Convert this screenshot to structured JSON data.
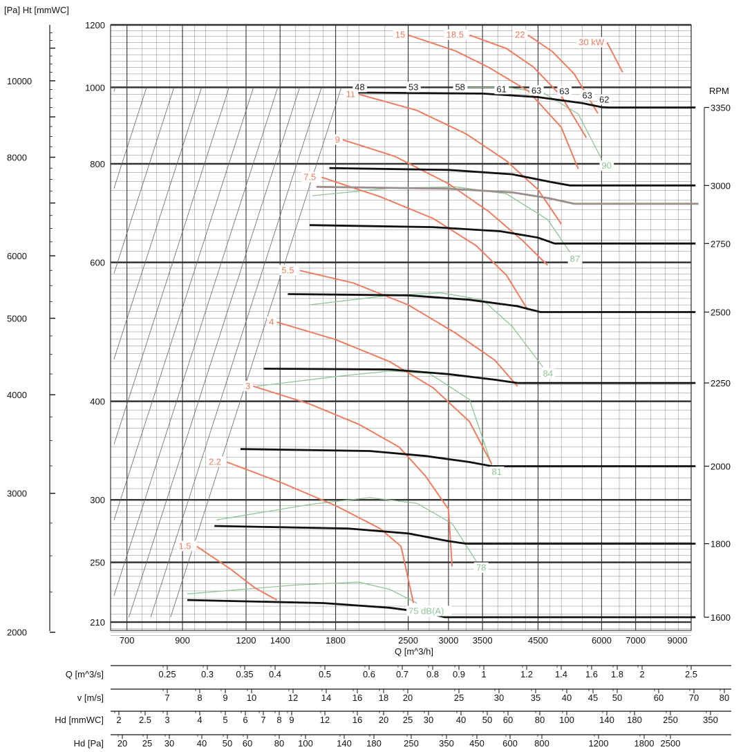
{
  "chart_data": {
    "type": "line",
    "title": "",
    "xlabel": "Q [m^3/h]",
    "ylabel_left": "[Pa] Ht [mmWC]",
    "ylabel_right": "RPM",
    "x_scale": "log",
    "y_scale": "log",
    "xlim": [
      650,
      9000
    ],
    "ylim": [
      205,
      1200
    ],
    "x_ticks": [
      700,
      900,
      1200,
      1400,
      1800,
      2500,
      3000,
      3500,
      4500,
      6000,
      7000,
      9000
    ],
    "y_ticks_mmwc": [
      210,
      250,
      300,
      400,
      600,
      800,
      1000,
      1200
    ],
    "y_ticks_pa": [
      2000,
      3000,
      4000,
      5000,
      6000,
      8000,
      10000
    ],
    "grid": true,
    "colors": {
      "rpm_curve": "#111111",
      "reference_curve": "#9a8f8a",
      "power_curve": "#f07b5e",
      "noise_curve": "#8fc598",
      "system_line": "#666666",
      "grid": "#444444"
    },
    "rpm_curves": [
      {
        "rpm": "3350",
        "points": [
          [
            1950,
            985
          ],
          [
            3500,
            982
          ],
          [
            4500,
            972
          ],
          [
            5500,
            955
          ],
          [
            6000,
            944
          ],
          [
            6200,
            943
          ],
          [
            9000,
            943
          ]
        ]
      },
      {
        "rpm": "3000",
        "points": [
          [
            1750,
            790
          ],
          [
            3000,
            786
          ],
          [
            4000,
            776
          ],
          [
            4800,
            758
          ],
          [
            5200,
            751
          ],
          [
            9000,
            751
          ]
        ]
      },
      {
        "rpm": "2750",
        "points": [
          [
            1600,
            669
          ],
          [
            2800,
            665
          ],
          [
            3800,
            657
          ],
          [
            4500,
            645
          ],
          [
            4850,
            634
          ],
          [
            9000,
            634
          ]
        ]
      },
      {
        "rpm": "2500",
        "points": [
          [
            1450,
            547
          ],
          [
            2500,
            545
          ],
          [
            3300,
            538
          ],
          [
            4100,
            528
          ],
          [
            4550,
            519
          ],
          [
            9000,
            519
          ]
        ]
      },
      {
        "rpm": "2250",
        "points": [
          [
            1300,
            440
          ],
          [
            2300,
            439
          ],
          [
            3000,
            433
          ],
          [
            3700,
            426
          ],
          [
            4100,
            422
          ],
          [
            9000,
            422
          ]
        ]
      },
      {
        "rpm": "2000",
        "points": [
          [
            1170,
            348
          ],
          [
            2100,
            346
          ],
          [
            2700,
            341
          ],
          [
            3300,
            335
          ],
          [
            3650,
            331
          ],
          [
            9000,
            331
          ]
        ]
      },
      {
        "rpm": "1800",
        "points": [
          [
            1040,
            278
          ],
          [
            1900,
            276
          ],
          [
            2500,
            272
          ],
          [
            3000,
            266
          ],
          [
            3250,
            264
          ],
          [
            9000,
            264
          ]
        ]
      },
      {
        "rpm": "1600",
        "points": [
          [
            920,
            224
          ],
          [
            1700,
            222
          ],
          [
            2300,
            219
          ],
          [
            2700,
            216
          ],
          [
            2950,
            213
          ],
          [
            9000,
            213
          ]
        ]
      }
    ],
    "reference_curve": {
      "points": [
        [
          1650,
          748
        ],
        [
          3000,
          744
        ],
        [
          4000,
          736
        ],
        [
          4700,
          724
        ],
        [
          5300,
          712
        ],
        [
          9300,
          712
        ]
      ]
    },
    "power_curves": [
      {
        "label": "1.5",
        "points": [
          [
            960,
            262
          ],
          [
            1120,
            245
          ],
          [
            1250,
            232
          ],
          [
            1380,
            224
          ]
        ]
      },
      {
        "label": "2.2",
        "points": [
          [
            1100,
            335
          ],
          [
            1400,
            316
          ],
          [
            1800,
            295
          ],
          [
            2200,
            276
          ],
          [
            2420,
            262
          ],
          [
            2560,
            222
          ]
        ]
      },
      {
        "label": "3",
        "points": [
          [
            1240,
            418
          ],
          [
            1600,
            397
          ],
          [
            2000,
            374
          ],
          [
            2400,
            350
          ],
          [
            2700,
            322
          ],
          [
            3000,
            292
          ],
          [
            3050,
            247
          ]
        ]
      },
      {
        "label": "4",
        "points": [
          [
            1380,
            504
          ],
          [
            1800,
            479
          ],
          [
            2300,
            449
          ],
          [
            2800,
            416
          ],
          [
            3300,
            377
          ],
          [
            3650,
            333
          ]
        ]
      },
      {
        "label": "5.5",
        "points": [
          [
            1530,
            586
          ],
          [
            1950,
            565
          ],
          [
            2500,
            530
          ],
          [
            3100,
            488
          ],
          [
            3700,
            451
          ],
          [
            4100,
            418
          ]
        ]
      },
      {
        "label": "7.5",
        "points": [
          [
            1690,
            769
          ],
          [
            2200,
            727
          ],
          [
            2800,
            682
          ],
          [
            3400,
            630
          ],
          [
            3900,
            578
          ],
          [
            4300,
            522
          ]
        ]
      },
      {
        "label": "9",
        "points": [
          [
            1860,
            858
          ],
          [
            2350,
            818
          ],
          [
            3000,
            755
          ],
          [
            3600,
            696
          ],
          [
            4200,
            639
          ],
          [
            4700,
            595
          ]
        ]
      },
      {
        "label": "11",
        "points": [
          [
            2000,
            980
          ],
          [
            2600,
            935
          ],
          [
            3250,
            873
          ],
          [
            3900,
            807
          ],
          [
            4500,
            742
          ],
          [
            5000,
            671
          ]
        ]
      },
      {
        "label": "15",
        "points": [
          [
            2500,
            1165
          ],
          [
            3100,
            1112
          ],
          [
            3600,
            1060
          ],
          [
            4300,
            990
          ],
          [
            5000,
            890
          ],
          [
            5400,
            788
          ]
        ]
      },
      {
        "label": "18.5",
        "points": [
          [
            3300,
            1165
          ],
          [
            3900,
            1120
          ],
          [
            4400,
            1062
          ],
          [
            5000,
            975
          ],
          [
            5600,
            863
          ]
        ]
      },
      {
        "label": "22",
        "points": [
          [
            4300,
            1165
          ],
          [
            4800,
            1110
          ],
          [
            5300,
            1040
          ],
          [
            5900,
            927
          ]
        ]
      },
      {
        "label": "30 kW",
        "points": [
          [
            6150,
            1140
          ],
          [
            6600,
            1045
          ]
        ]
      }
    ],
    "noise_curves": [
      {
        "label": "75 dB(A)",
        "points": [
          [
            920,
            228
          ],
          [
            1500,
            234
          ],
          [
            2000,
            236
          ],
          [
            2300,
            231
          ],
          [
            2600,
            222
          ]
        ]
      },
      {
        "label": "78",
        "points": [
          [
            1050,
            283
          ],
          [
            1600,
            296
          ],
          [
            2100,
            302
          ],
          [
            2600,
            297
          ],
          [
            3050,
            280
          ],
          [
            3400,
            251
          ]
        ]
      },
      {
        "label": "81",
        "points": [
          [
            1260,
            418
          ],
          [
            1800,
            430
          ],
          [
            2300,
            437
          ],
          [
            2750,
            434
          ],
          [
            3300,
            402
          ],
          [
            3650,
            332
          ]
        ]
      },
      {
        "label": "84",
        "points": [
          [
            1600,
            530
          ],
          [
            2300,
            545
          ],
          [
            2900,
            549
          ],
          [
            3500,
            538
          ],
          [
            4000,
            498
          ],
          [
            4600,
            442
          ]
        ]
      },
      {
        "label": "87",
        "points": [
          [
            1620,
            729
          ],
          [
            2300,
            745
          ],
          [
            3100,
            748
          ],
          [
            3900,
            733
          ],
          [
            4700,
            680
          ],
          [
            5200,
            618
          ]
        ]
      },
      {
        "label": "90",
        "points": [
          [
            3200,
            1000
          ],
          [
            3900,
            1000
          ],
          [
            4600,
            985
          ],
          [
            5400,
            925
          ],
          [
            6000,
            811
          ]
        ]
      }
    ],
    "noise_point_labels": [
      "48",
      "53",
      "58",
      "61",
      "63",
      "63",
      "63",
      "62"
    ],
    "bottom_scales": [
      {
        "label": "Q [m^3/s]",
        "ticks": [
          "0.25",
          "0.3",
          "0.35",
          "0.4",
          "0.5",
          "0.6",
          "0.7",
          "0.8",
          "0.9",
          "1",
          "1.2",
          "1.4",
          "1.6",
          "1.8",
          "2",
          "2.5"
        ]
      },
      {
        "label": "v [m/s]",
        "ticks": [
          "7",
          "8",
          "9",
          "10",
          "12",
          "14",
          "16",
          "18",
          "20",
          "25",
          "30",
          "35",
          "40",
          "45",
          "50",
          "60",
          "70",
          "80"
        ]
      },
      {
        "label": "Hd [mmWC]",
        "ticks": [
          "2",
          "2.5",
          "3",
          "4",
          "5",
          "6",
          "7",
          "8",
          "9",
          "12",
          "16",
          "20",
          "25",
          "30",
          "40",
          "50",
          "60",
          "80",
          "100",
          "140",
          "180",
          "250",
          "350"
        ]
      },
      {
        "label": "Hd [Pa]",
        "ticks": [
          "20",
          "25",
          "30",
          "40",
          "50",
          "60",
          "80",
          "100",
          "140",
          "180",
          "250",
          "350",
          "450",
          "600",
          "800",
          "1200",
          "1800",
          "2500"
        ]
      }
    ]
  }
}
